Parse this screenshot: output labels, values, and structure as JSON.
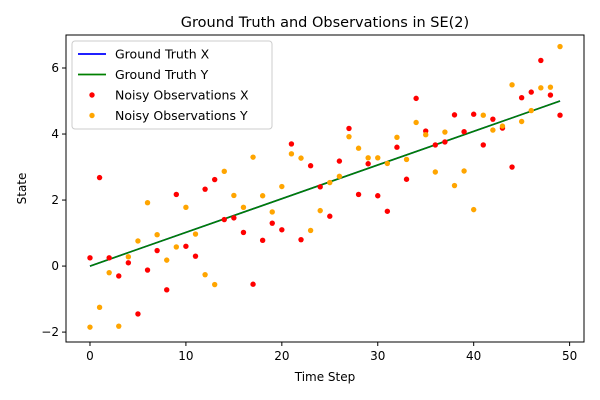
{
  "chart_data": {
    "type": "scatter",
    "title": "Ground Truth and Observations in SE(2)",
    "xlabel": "Time Step",
    "ylabel": "State",
    "xlim": [
      -2.5,
      51.5
    ],
    "ylim": [
      -2.3,
      7.0
    ],
    "xticks": [
      0,
      10,
      20,
      30,
      40,
      50
    ],
    "yticks": [
      -2,
      0,
      2,
      4,
      6
    ],
    "grid": false,
    "legend_position": "top-left",
    "lines": [
      {
        "name": "Ground Truth X",
        "color": "#0000ff",
        "x": [
          0,
          49
        ],
        "y": [
          0,
          5.0
        ]
      },
      {
        "name": "Ground Truth Y",
        "color": "#008000",
        "x": [
          0,
          49
        ],
        "y": [
          0,
          5.0
        ]
      }
    ],
    "scatter": [
      {
        "name": "Noisy Observations X",
        "color": "#ff0000",
        "x": [
          0,
          1,
          2,
          3,
          4,
          5,
          6,
          7,
          8,
          9,
          10,
          11,
          12,
          13,
          14,
          15,
          16,
          17,
          18,
          19,
          20,
          21,
          22,
          23,
          24,
          25,
          26,
          27,
          28,
          29,
          30,
          31,
          32,
          33,
          34,
          35,
          36,
          37,
          38,
          39,
          40,
          41,
          42,
          43,
          44,
          45,
          46,
          47,
          48,
          49
        ],
        "y": [
          0.25,
          2.68,
          0.25,
          -0.3,
          0.1,
          -1.45,
          -0.12,
          0.47,
          -0.72,
          2.17,
          0.6,
          0.3,
          2.33,
          2.62,
          1.41,
          1.46,
          1.02,
          -0.55,
          0.78,
          1.3,
          1.1,
          3.7,
          0.8,
          3.04,
          2.4,
          1.51,
          3.18,
          4.17,
          2.17,
          3.1,
          2.13,
          1.66,
          3.6,
          2.63,
          5.08,
          4.09,
          3.67,
          3.76,
          4.58,
          4.07,
          4.6,
          3.67,
          4.45,
          4.18,
          3.0,
          5.1,
          5.27,
          6.23,
          5.18,
          4.57
        ]
      },
      {
        "name": "Noisy Observations Y",
        "color": "#ffa500",
        "x": [
          0,
          1,
          2,
          3,
          4,
          5,
          6,
          7,
          8,
          9,
          10,
          11,
          12,
          13,
          14,
          15,
          16,
          17,
          18,
          19,
          20,
          21,
          22,
          23,
          24,
          25,
          26,
          27,
          28,
          29,
          30,
          31,
          32,
          33,
          34,
          35,
          36,
          37,
          38,
          39,
          40,
          41,
          42,
          43,
          44,
          45,
          46,
          47,
          48,
          49
        ],
        "y": [
          -1.85,
          -1.25,
          -0.2,
          -1.82,
          0.28,
          0.76,
          1.92,
          0.95,
          0.18,
          0.58,
          1.78,
          0.97,
          -0.26,
          -0.56,
          2.87,
          2.14,
          1.78,
          3.3,
          2.13,
          1.64,
          2.41,
          3.4,
          3.27,
          1.08,
          1.68,
          2.53,
          2.72,
          3.92,
          3.57,
          3.28,
          3.28,
          3.11,
          3.9,
          3.23,
          4.35,
          3.98,
          2.85,
          4.06,
          2.44,
          2.88,
          1.71,
          4.57,
          4.12,
          4.24,
          5.49,
          4.38,
          4.71,
          5.4,
          5.42,
          6.65
        ]
      }
    ]
  }
}
